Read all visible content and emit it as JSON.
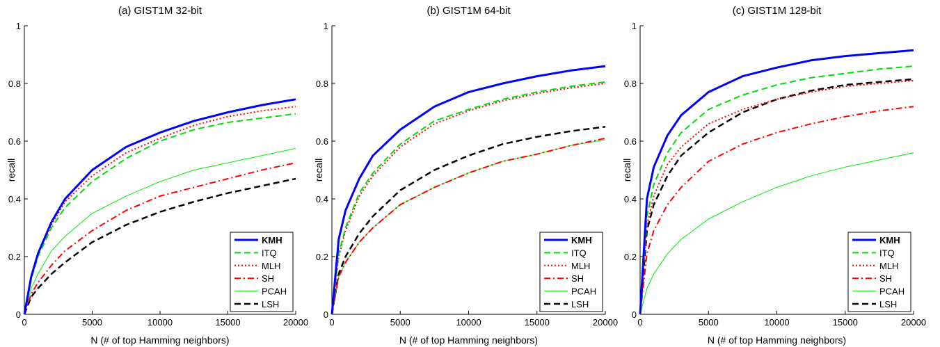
{
  "chart_data": [
    {
      "type": "line",
      "title": "(a) GIST1M  32-bit",
      "xlabel": "N (# of top Hamming neighbors)",
      "ylabel": "recall",
      "xlim": [
        0,
        20000
      ],
      "ylim": [
        0,
        1
      ],
      "xticks": [
        "0",
        "5000",
        "10000",
        "15000",
        "20000"
      ],
      "yticks": [
        "0",
        "0.2",
        "0.4",
        "0.6",
        "0.8",
        "1"
      ],
      "grid": false,
      "legend_position": "bottom-right",
      "x": [
        0,
        500,
        1000,
        2000,
        3000,
        5000,
        7500,
        10000,
        12500,
        15000,
        17500,
        20000
      ],
      "series": [
        {
          "name": "KMH",
          "values": [
            0,
            0.13,
            0.21,
            0.32,
            0.4,
            0.5,
            0.58,
            0.63,
            0.67,
            0.7,
            0.725,
            0.745
          ]
        },
        {
          "name": "ITQ",
          "values": [
            0,
            0.12,
            0.2,
            0.3,
            0.37,
            0.46,
            0.54,
            0.6,
            0.64,
            0.665,
            0.68,
            0.695
          ]
        },
        {
          "name": "MLH",
          "values": [
            0,
            0.13,
            0.21,
            0.31,
            0.39,
            0.48,
            0.56,
            0.61,
            0.655,
            0.685,
            0.705,
            0.72
          ]
        },
        {
          "name": "SH",
          "values": [
            0,
            0.07,
            0.11,
            0.17,
            0.22,
            0.29,
            0.36,
            0.41,
            0.44,
            0.47,
            0.5,
            0.525
          ]
        },
        {
          "name": "PCAH",
          "values": [
            0,
            0.09,
            0.14,
            0.22,
            0.27,
            0.35,
            0.41,
            0.46,
            0.5,
            0.525,
            0.55,
            0.575
          ]
        },
        {
          "name": "LSH",
          "values": [
            0,
            0.06,
            0.09,
            0.14,
            0.18,
            0.25,
            0.31,
            0.355,
            0.39,
            0.42,
            0.445,
            0.47
          ]
        }
      ]
    },
    {
      "type": "line",
      "title": "(b) GIST1M  64-bit",
      "xlabel": "N (# of top Hamming neighbors)",
      "ylabel": "recall",
      "xlim": [
        0,
        20000
      ],
      "ylim": [
        0,
        1
      ],
      "xticks": [
        "0",
        "5000",
        "10000",
        "15000",
        "20000"
      ],
      "yticks": [
        "0",
        "0.2",
        "0.4",
        "0.6",
        "0.8",
        "1"
      ],
      "grid": false,
      "legend_position": "bottom-right",
      "x": [
        0,
        500,
        1000,
        2000,
        3000,
        5000,
        7500,
        10000,
        12500,
        15000,
        17500,
        20000
      ],
      "series": [
        {
          "name": "KMH",
          "values": [
            0,
            0.26,
            0.36,
            0.47,
            0.55,
            0.64,
            0.72,
            0.77,
            0.8,
            0.825,
            0.845,
            0.86
          ]
        },
        {
          "name": "ITQ",
          "values": [
            0,
            0.21,
            0.3,
            0.42,
            0.49,
            0.59,
            0.67,
            0.71,
            0.745,
            0.77,
            0.79,
            0.805
          ]
        },
        {
          "name": "MLH",
          "values": [
            0,
            0.2,
            0.29,
            0.41,
            0.48,
            0.58,
            0.66,
            0.705,
            0.74,
            0.765,
            0.785,
            0.8
          ]
        },
        {
          "name": "SH",
          "values": [
            0,
            0.13,
            0.18,
            0.25,
            0.3,
            0.38,
            0.44,
            0.49,
            0.53,
            0.555,
            0.585,
            0.61
          ]
        },
        {
          "name": "PCAH",
          "values": [
            0,
            0.13,
            0.18,
            0.25,
            0.3,
            0.38,
            0.44,
            0.49,
            0.53,
            0.555,
            0.585,
            0.605
          ]
        },
        {
          "name": "LSH",
          "values": [
            0,
            0.14,
            0.2,
            0.28,
            0.34,
            0.43,
            0.5,
            0.55,
            0.59,
            0.615,
            0.635,
            0.65
          ]
        }
      ]
    },
    {
      "type": "line",
      "title": "(c) GIST1M  128-bit",
      "xlabel": "N (# of top Hamming neighbors)",
      "ylabel": "recall",
      "xlim": [
        0,
        20000
      ],
      "ylim": [
        0,
        1
      ],
      "xticks": [
        "0",
        "5000",
        "10000",
        "15000",
        "20000"
      ],
      "yticks": [
        "0",
        "0.2",
        "0.4",
        "0.6",
        "0.8",
        "1"
      ],
      "grid": false,
      "legend_position": "bottom-right",
      "x": [
        0,
        500,
        1000,
        2000,
        3000,
        5000,
        7500,
        10000,
        12500,
        15000,
        17500,
        20000
      ],
      "series": [
        {
          "name": "KMH",
          "values": [
            0,
            0.4,
            0.51,
            0.62,
            0.69,
            0.77,
            0.825,
            0.855,
            0.88,
            0.895,
            0.905,
            0.915
          ]
        },
        {
          "name": "ITQ",
          "values": [
            0,
            0.34,
            0.45,
            0.56,
            0.63,
            0.71,
            0.76,
            0.795,
            0.82,
            0.835,
            0.85,
            0.86
          ]
        },
        {
          "name": "MLH",
          "values": [
            0,
            0.31,
            0.41,
            0.52,
            0.58,
            0.66,
            0.71,
            0.745,
            0.77,
            0.79,
            0.8,
            0.81
          ]
        },
        {
          "name": "SH",
          "values": [
            0,
            0.21,
            0.29,
            0.38,
            0.44,
            0.53,
            0.59,
            0.63,
            0.66,
            0.685,
            0.705,
            0.72
          ]
        },
        {
          "name": "PCAH",
          "values": [
            0,
            0.09,
            0.14,
            0.21,
            0.26,
            0.33,
            0.39,
            0.44,
            0.48,
            0.51,
            0.535,
            0.56
          ]
        },
        {
          "name": "LSH",
          "values": [
            0,
            0.29,
            0.38,
            0.48,
            0.55,
            0.63,
            0.7,
            0.745,
            0.775,
            0.795,
            0.805,
            0.815
          ]
        }
      ]
    }
  ],
  "series_style": {
    "KMH": {
      "color": "#0000ff",
      "dash": "solid",
      "width": 3,
      "bold": true
    },
    "ITQ": {
      "color": "#00dd00",
      "dash": "dashed",
      "width": 2,
      "bold": false
    },
    "MLH": {
      "color": "#ff0000",
      "dash": "dotted",
      "width": 2,
      "bold": false
    },
    "SH": {
      "color": "#ff0000",
      "dash": "dashdot",
      "width": 2,
      "bold": false
    },
    "PCAH": {
      "color": "#00ee00",
      "dash": "solid",
      "width": 1,
      "bold": false
    },
    "LSH": {
      "color": "#000000",
      "dash": "dashed",
      "width": 2.5,
      "bold": false
    }
  }
}
